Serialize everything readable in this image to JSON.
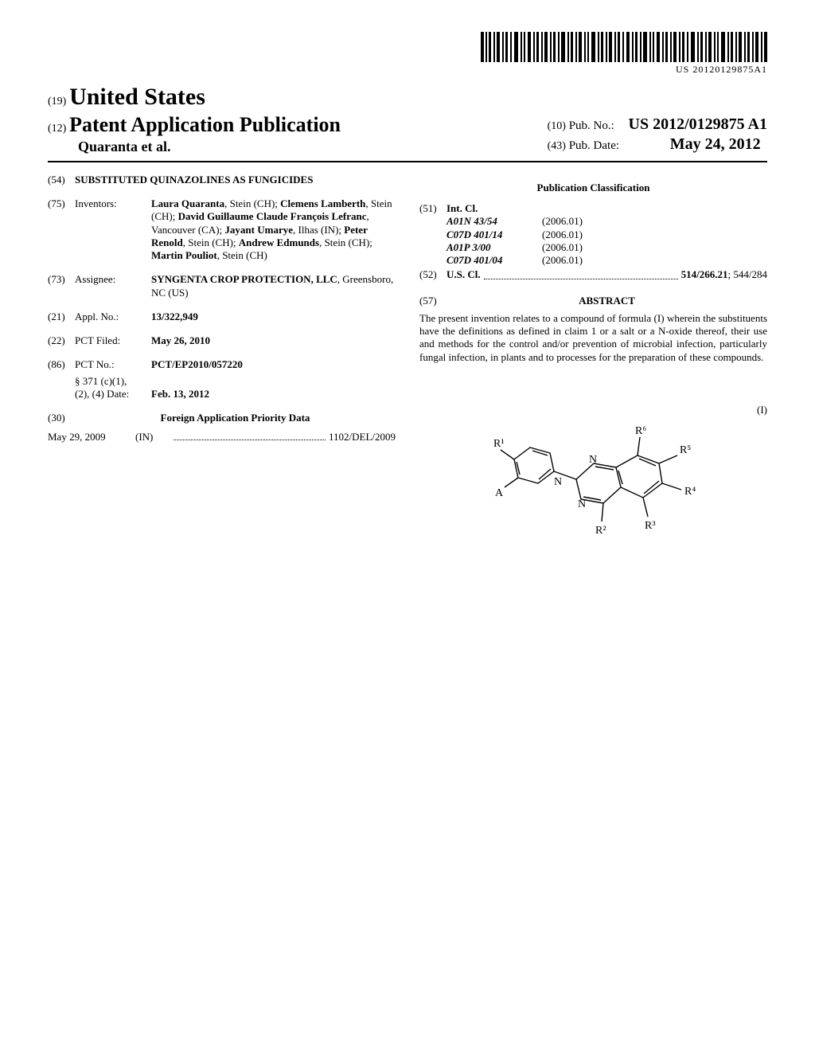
{
  "barcode_text": "US 20120129875A1",
  "header": {
    "code19": "(19)",
    "country": "United States",
    "code12": "(12)",
    "doc_type": "Patent Application Publication",
    "authors": "Quaranta et al.",
    "code10": "(10)",
    "pubno_label": "Pub. No.:",
    "pubno": "US 2012/0129875 A1",
    "code43": "(43)",
    "pubdate_label": "Pub. Date:",
    "pubdate": "May 24, 2012"
  },
  "left": {
    "f54": {
      "num": "(54)",
      "title": "SUBSTITUTED QUINAZOLINES AS FUNGICIDES"
    },
    "f75": {
      "num": "(75)",
      "label": "Inventors:",
      "text": "Laura Quaranta, Stein (CH); Clemens Lamberth, Stein (CH); David Guillaume Claude François Lefranc, Vancouver (CA); Jayant Umarye, Ilhas (IN); Peter Renold, Stein (CH); Andrew Edmunds, Stein (CH); Martin Pouliot, Stein (CH)",
      "names_bold": [
        "Laura Quaranta",
        "Clemens Lamberth",
        "David Guillaume Claude François Lefranc",
        "Jayant Umarye",
        "Peter Renold",
        "Andrew Edmunds",
        "Martin Pouliot"
      ]
    },
    "f73": {
      "num": "(73)",
      "label": "Assignee:",
      "name": "SYNGENTA CROP PROTECTION, LLC",
      "loc": ", Greensboro, NC (US)"
    },
    "f21": {
      "num": "(21)",
      "label": "Appl. No.:",
      "val": "13/322,949"
    },
    "f22": {
      "num": "(22)",
      "label": "PCT Filed:",
      "val": "May 26, 2010"
    },
    "f86": {
      "num": "(86)",
      "label": "PCT No.:",
      "val": "PCT/EP2010/057220",
      "sub1": "§ 371 (c)(1),",
      "sub2": "(2), (4) Date:",
      "sub2val": "Feb. 13, 2012"
    },
    "f30": {
      "num": "(30)",
      "title": "Foreign Application Priority Data"
    },
    "priority": {
      "date": "May 29, 2009",
      "cc": "(IN)",
      "num": "1102/DEL/2009"
    }
  },
  "right": {
    "pubclass_head": "Publication Classification",
    "f51": {
      "num": "(51)",
      "label": "Int. Cl.",
      "rows": [
        {
          "code": "A01N 43/54",
          "yr": "(2006.01)"
        },
        {
          "code": "C07D 401/14",
          "yr": "(2006.01)"
        },
        {
          "code": "A01P 3/00",
          "yr": "(2006.01)"
        },
        {
          "code": "C07D 401/04",
          "yr": "(2006.01)"
        }
      ]
    },
    "f52": {
      "num": "(52)",
      "label": "U.S. Cl.",
      "bold": "514/266.21",
      "rest": "; 544/284"
    },
    "f57": {
      "num": "(57)",
      "head": "ABSTRACT"
    },
    "abstract": "The present invention relates to a compound of formula (I) wherein the substituents have the definitions as defined in claim 1 or a salt or a N-oxide thereof, their use and methods for the control and/or prevention of microbial infection, particularly fungal infection, in plants and to processes for the preparation of these compounds.",
    "formula_label": "(I)",
    "r_labels": {
      "R1": "R¹",
      "R2": "R²",
      "R3": "R³",
      "R4": "R⁴",
      "R5": "R⁵",
      "R6": "R⁶",
      "A": "A"
    }
  }
}
